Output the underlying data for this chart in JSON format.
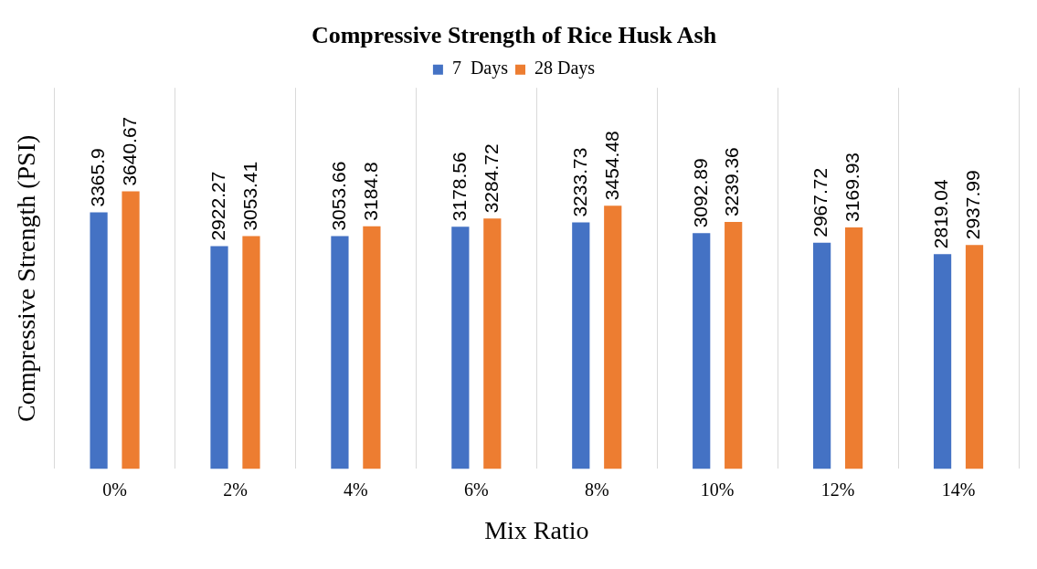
{
  "chart_data": {
    "type": "bar",
    "title": "Compressive Strength of Rice Husk Ash",
    "xlabel": "Mix Ratio",
    "ylabel": "Compressive Strength (PSI)",
    "categories": [
      "0%",
      "2%",
      "4%",
      "6%",
      "8%",
      "10%",
      "12%",
      "14%"
    ],
    "series": [
      {
        "name": "7  Days",
        "color": "#4472c4",
        "values": [
          3365.9,
          2922.27,
          3053.66,
          3178.56,
          3233.73,
          3092.89,
          2967.72,
          2819.04
        ]
      },
      {
        "name": "28 Days",
        "color": "#ed7d31",
        "values": [
          3640.67,
          3053.41,
          3184.8,
          3284.72,
          3454.48,
          3239.36,
          3169.93,
          2937.99
        ]
      }
    ],
    "ylim": [
      0,
      5000
    ],
    "tick_labels": "x",
    "grid": "x",
    "legend": "top",
    "data_labels": true
  }
}
